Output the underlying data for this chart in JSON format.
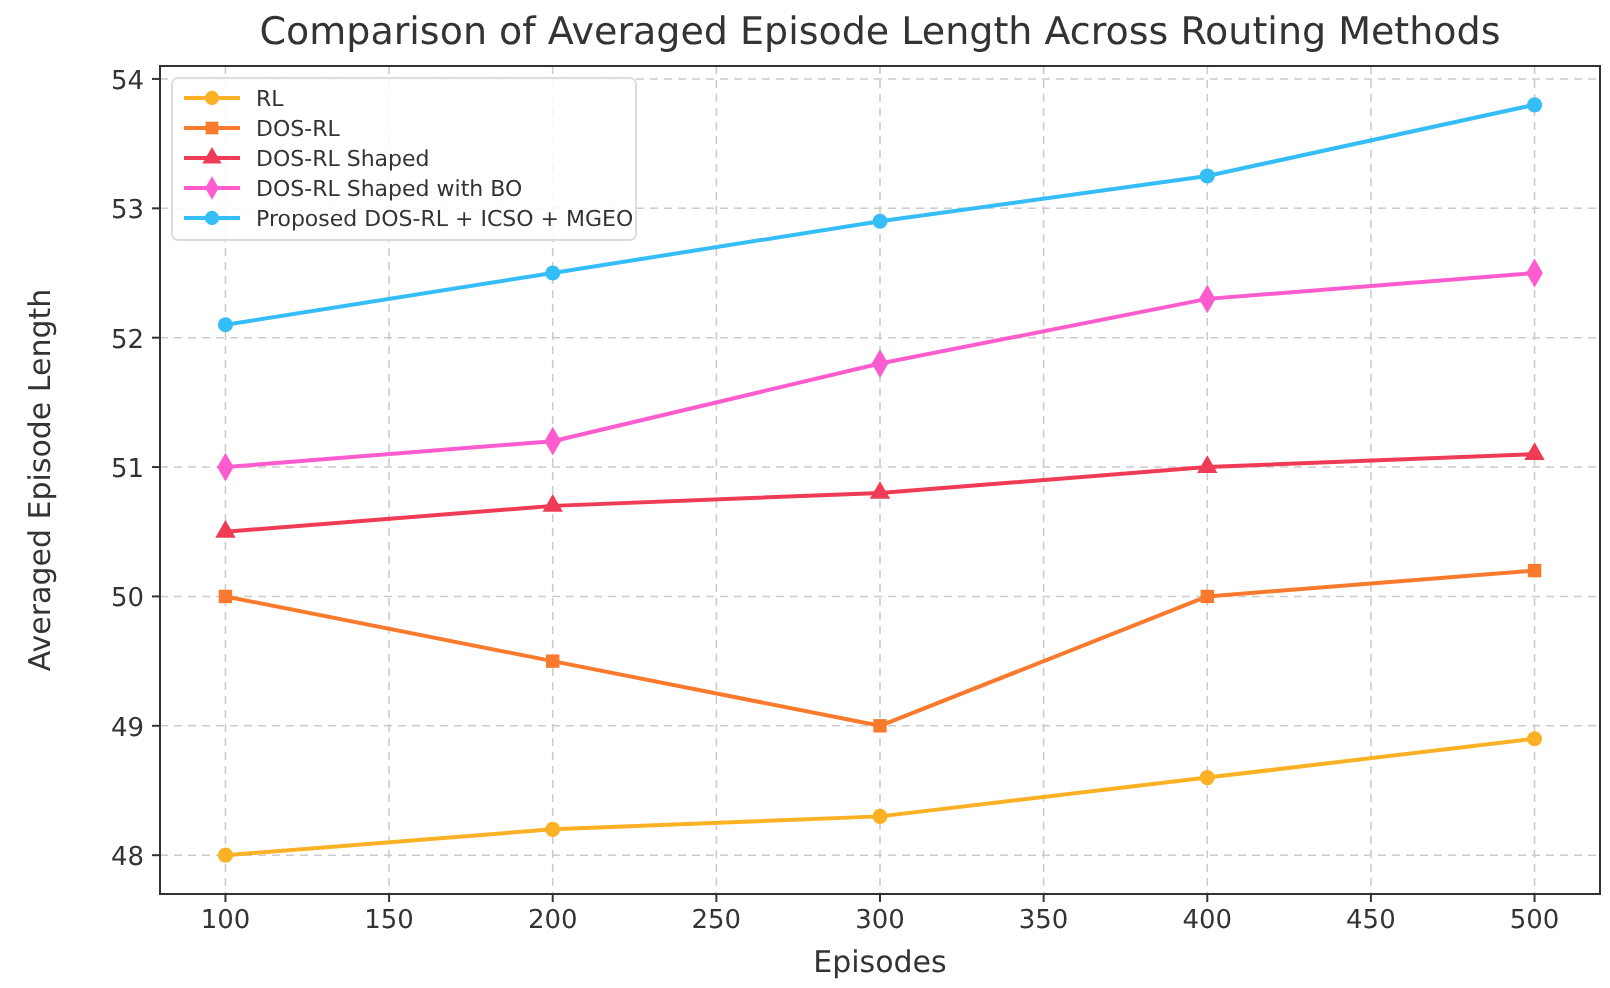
{
  "chart_data": {
    "type": "line",
    "title": "Comparison of Averaged Episode Length Across Routing Methods",
    "xlabel": "Episodes",
    "ylabel": "Averaged Episode Length",
    "x": [
      100,
      200,
      300,
      400,
      500
    ],
    "xlim": [
      80,
      520
    ],
    "xticks": [
      100,
      150,
      200,
      250,
      300,
      350,
      400,
      450,
      500
    ],
    "ylim": [
      47.7,
      54.1
    ],
    "yticks": [
      48,
      49,
      50,
      51,
      52,
      53,
      54
    ],
    "grid": true,
    "legend": "top left",
    "line_style": "solid",
    "series": [
      {
        "name": "RL",
        "color": "#fbb124",
        "marker": "circle",
        "values": [
          48.0,
          48.2,
          48.3,
          48.6,
          48.9
        ]
      },
      {
        "name": "DOS-RL",
        "color": "#f97a2c",
        "marker": "square",
        "values": [
          50.0,
          49.5,
          49.0,
          50.0,
          50.2
        ]
      },
      {
        "name": "DOS-RL Shaped",
        "color": "#ef3b55",
        "marker": "triangle",
        "values": [
          50.5,
          50.7,
          50.8,
          51.0,
          51.1
        ]
      },
      {
        "name": "DOS-RL Shaped with BO",
        "color": "#fd5ccf",
        "marker": "diamond",
        "values": [
          51.0,
          51.2,
          51.8,
          52.3,
          52.5
        ]
      },
      {
        "name": "Proposed DOS-RL + ICSO + MGEO",
        "color": "#35bdf7",
        "marker": "circle",
        "values": [
          52.1,
          52.5,
          52.9,
          53.25,
          53.8
        ]
      }
    ]
  }
}
